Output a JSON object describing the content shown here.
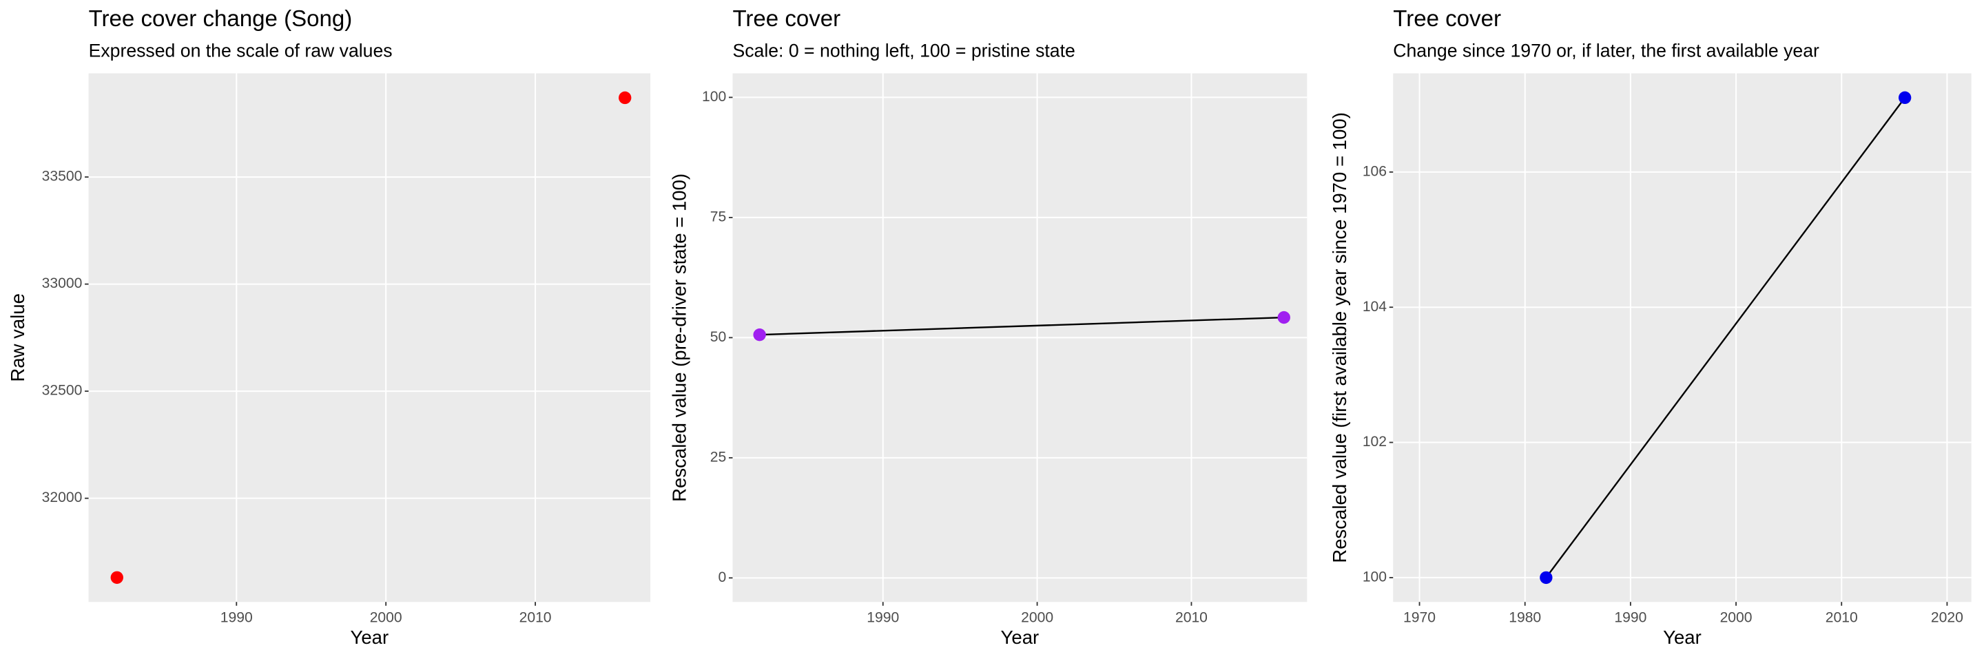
{
  "chart_data": [
    {
      "type": "scatter",
      "title": "Tree cover change (Song)",
      "subtitle": "Expressed on the scale of raw values",
      "x_label": "Year",
      "y_label": "Raw value",
      "x": [
        1982,
        2016
      ],
      "values": [
        31630,
        33870
      ],
      "color": "#ff0000",
      "xlim": [
        1980.1,
        2017.7
      ],
      "ylim": [
        31516,
        33984
      ],
      "xticks": [
        1990,
        2000,
        2010
      ],
      "yticks": [
        32000,
        32500,
        33000,
        33500
      ],
      "grid": true
    },
    {
      "type": "line",
      "title": "Tree cover",
      "subtitle": "Scale: 0 = nothing left, 100 = pristine state",
      "x_label": "Year",
      "y_label": "Rescaled value (pre-driver state = 100)",
      "x": [
        1982,
        2016
      ],
      "values": [
        50.6,
        54.2
      ],
      "color": "#a020f0",
      "line_color": "#000000",
      "xlim": [
        1980.25,
        2017.5
      ],
      "ylim": [
        -5,
        105
      ],
      "xticks": [
        1990,
        2000,
        2010
      ],
      "yticks": [
        0,
        25,
        50,
        75,
        100
      ],
      "grid": true
    },
    {
      "type": "line",
      "title": "Tree cover",
      "subtitle": "Change since 1970 or, if later, the first available year",
      "x_label": "Year",
      "y_label": "Rescaled value (first available year since 1970 = 100)",
      "x": [
        1982,
        2016
      ],
      "values": [
        100,
        107.1
      ],
      "color": "#0000ee",
      "line_color": "#000000",
      "xlim": [
        1967.5,
        2022.3
      ],
      "ylim": [
        99.64,
        107.46
      ],
      "xticks": [
        1970,
        1980,
        1990,
        2000,
        2010,
        2020
      ],
      "yticks": [
        100,
        102,
        104,
        106
      ],
      "grid": true
    }
  ]
}
